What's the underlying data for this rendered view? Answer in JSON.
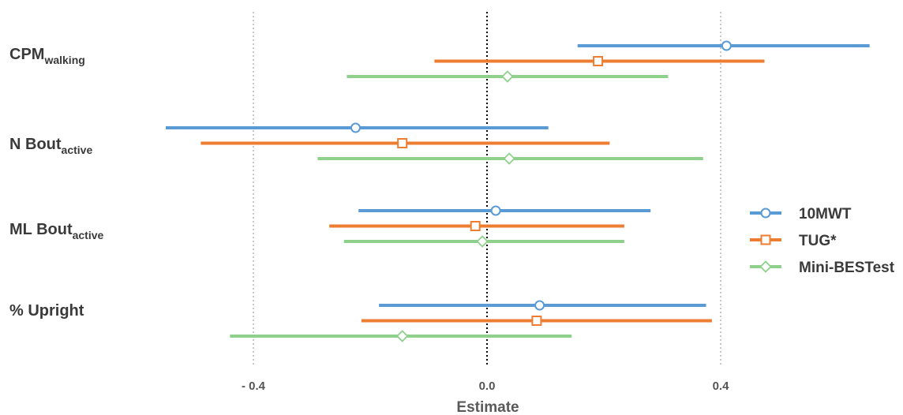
{
  "chart_data": {
    "type": "forest",
    "xlabel": "Estimate",
    "xlim": [
      -0.6,
      0.72
    ],
    "xticks": [
      -0.4,
      0.0,
      0.4
    ],
    "xtick_labels": [
      "- 0.4",
      "0.0",
      "0.4"
    ],
    "reference_lines": [
      {
        "x": -0.4,
        "style": "dotted",
        "color": "#aaaaaa"
      },
      {
        "x": 0.0,
        "style": "dotted",
        "color": "#000000"
      },
      {
        "x": 0.4,
        "style": "dotted",
        "color": "#aaaaaa"
      }
    ],
    "grid": false,
    "legend_position": "right",
    "categories": [
      {
        "label": "CPM",
        "subscript": "walking"
      },
      {
        "label": "N Bout",
        "subscript": "active"
      },
      {
        "label": "ML Bout",
        "subscript": "active"
      },
      {
        "label": "% Upright",
        "subscript": ""
      }
    ],
    "series": [
      {
        "name": "10MWT",
        "color": "#5b9bd5",
        "marker": "circle",
        "values": [
          {
            "estimate": 0.41,
            "lower": 0.155,
            "upper": 0.655
          },
          {
            "estimate": -0.225,
            "lower": -0.55,
            "upper": 0.105
          },
          {
            "estimate": 0.015,
            "lower": -0.22,
            "upper": 0.28
          },
          {
            "estimate": 0.09,
            "lower": -0.185,
            "upper": 0.375
          }
        ]
      },
      {
        "name": "TUG*",
        "color": "#ed7d31",
        "marker": "square",
        "values": [
          {
            "estimate": 0.19,
            "lower": -0.09,
            "upper": 0.475
          },
          {
            "estimate": -0.145,
            "lower": -0.49,
            "upper": 0.21
          },
          {
            "estimate": -0.02,
            "lower": -0.27,
            "upper": 0.235
          },
          {
            "estimate": 0.085,
            "lower": -0.215,
            "upper": 0.385
          }
        ]
      },
      {
        "name": "Mini-BESTest",
        "color": "#8fd18c",
        "marker": "diamond",
        "values": [
          {
            "estimate": 0.035,
            "lower": -0.24,
            "upper": 0.31
          },
          {
            "estimate": 0.038,
            "lower": -0.29,
            "upper": 0.37
          },
          {
            "estimate": -0.008,
            "lower": -0.245,
            "upper": 0.235
          },
          {
            "estimate": -0.145,
            "lower": -0.44,
            "upper": 0.145
          }
        ]
      }
    ]
  }
}
